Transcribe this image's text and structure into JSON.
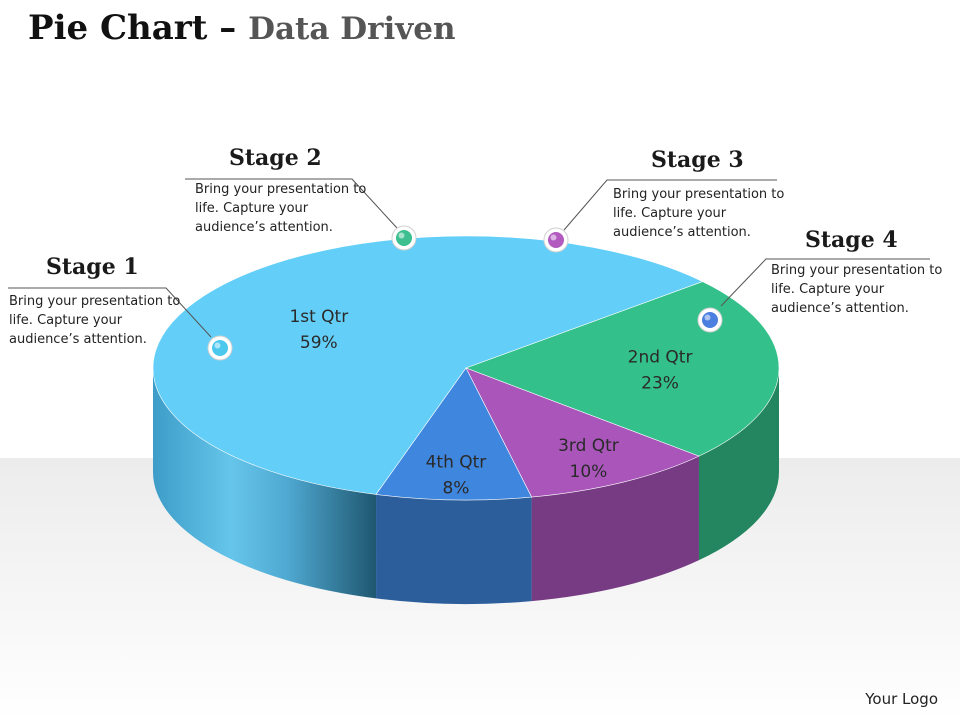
{
  "slide": {
    "title": "Pie Chart",
    "separator": " – ",
    "subtitle": "Data Driven",
    "logo": "Your Logo"
  },
  "stages": [
    {
      "title": "Stage 1",
      "description": "Bring your presentation to life. Capture your audience’s attention.",
      "marker_color": "#4cc8ef"
    },
    {
      "title": "Stage 2",
      "description": "Bring your presentation to life. Capture your audience’s attention.",
      "marker_color": "#3dbf8f"
    },
    {
      "title": "Stage 3",
      "description": "Bring your presentation to life. Capture your audience’s attention.",
      "marker_color": "#b25ac0"
    },
    {
      "title": "Stage 4",
      "description": "Bring your presentation to life. Capture your audience’s attention.",
      "marker_color": "#4b7fe0"
    }
  ],
  "chart_data": {
    "type": "pie",
    "style": "3d",
    "categories": [
      "1st Qtr",
      "2nd Qtr",
      "3rd Qtr",
      "4th Qtr"
    ],
    "values": [
      59,
      23,
      10,
      8
    ],
    "value_labels": [
      "59%",
      "23%",
      "10%",
      "8%"
    ],
    "colors": [
      "#63cff9",
      "#34c08a",
      "#a955ba",
      "#3f86de"
    ],
    "legend": "none"
  }
}
